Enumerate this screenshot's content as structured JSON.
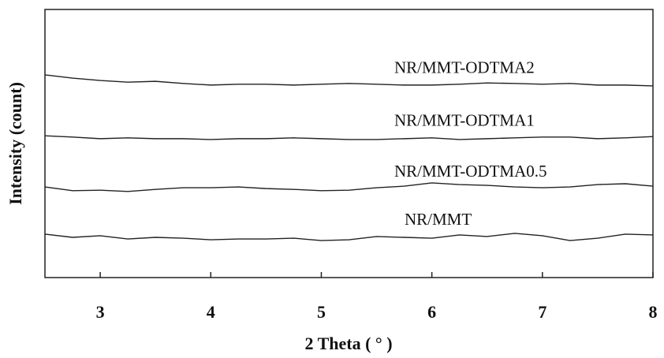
{
  "chart_data": {
    "type": "line",
    "xlabel": "2 Theta ( ° )",
    "ylabel": "Intensity (count)",
    "x": [
      2.5,
      2.75,
      3,
      3.25,
      3.5,
      3.75,
      4,
      4.25,
      4.5,
      4.75,
      5,
      5.25,
      5.5,
      5.75,
      6,
      6.25,
      6.5,
      6.75,
      7,
      7.25,
      7.5,
      7.75,
      8
    ],
    "series": [
      {
        "name": "NR/MMT-ODTMA2",
        "color": "#222222",
        "values": [
          75.6,
          74.4,
          73.5,
          72.9,
          73.2,
          72.4,
          71.8,
          72.1,
          72.1,
          71.8,
          72.1,
          72.4,
          72.1,
          71.8,
          71.8,
          72.1,
          72.6,
          72.4,
          72.1,
          72.4,
          71.8,
          71.8,
          71.5
        ]
      },
      {
        "name": "NR/MMT-ODTMA1",
        "color": "#222222",
        "values": [
          52.9,
          52.4,
          51.8,
          52.1,
          51.8,
          51.8,
          51.5,
          51.8,
          51.8,
          52.1,
          51.8,
          51.5,
          51.5,
          51.8,
          52.1,
          51.5,
          51.8,
          52.1,
          52.4,
          52.4,
          51.8,
          52.1,
          52.6
        ]
      },
      {
        "name": "NR/MMT-ODTMA0.5",
        "color": "#222222",
        "values": [
          33.8,
          32.4,
          32.6,
          32.1,
          32.9,
          33.5,
          33.5,
          33.8,
          33.2,
          32.9,
          32.4,
          32.6,
          33.5,
          34.1,
          35.3,
          34.7,
          34.4,
          33.8,
          33.5,
          33.8,
          34.7,
          35.0,
          34.1
        ]
      },
      {
        "name": "NR/MMT",
        "color": "#222222",
        "values": [
          16.2,
          15.0,
          15.6,
          14.4,
          15.0,
          14.7,
          14.1,
          14.4,
          14.4,
          14.7,
          13.8,
          14.1,
          15.3,
          15.0,
          14.7,
          15.9,
          15.3,
          16.5,
          15.6,
          13.8,
          14.7,
          16.2,
          15.9
        ]
      }
    ],
    "xlim": [
      2.5,
      8
    ],
    "xticks": [
      3,
      4,
      5,
      6,
      7,
      8
    ],
    "ylim": [
      0,
      100
    ]
  }
}
